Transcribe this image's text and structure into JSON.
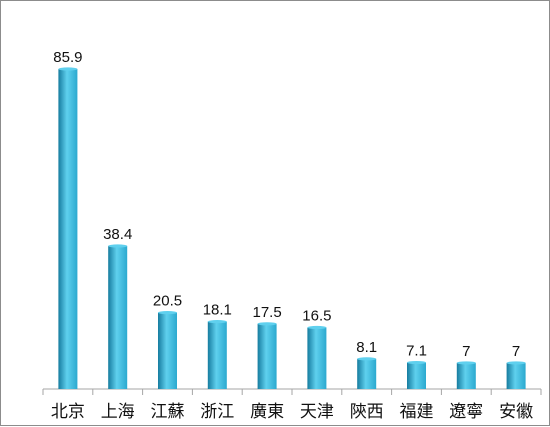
{
  "chart_data": {
    "type": "bar",
    "categories": [
      "北京",
      "上海",
      "江蘇",
      "浙江",
      "廣東",
      "天津",
      "陝西",
      "福建",
      "遼寧",
      "安徽"
    ],
    "values": [
      85.9,
      38.4,
      20.5,
      18.1,
      17.5,
      16.5,
      8.1,
      7.1,
      7,
      7
    ],
    "data_labels": [
      "85.9",
      "38.4",
      "20.5",
      "18.1",
      "17.5",
      "16.5",
      "8.1",
      "7.1",
      "7",
      "7"
    ],
    "title": "",
    "xlabel": "",
    "ylabel": "",
    "ylim": [
      0,
      85.9
    ],
    "grid": false,
    "legend": "none",
    "colors": {
      "bar": "#2ba9cf",
      "bar_light": "#5fd0ee",
      "bar_dark": "#167c9f",
      "axis": "#a6a6a6"
    }
  }
}
